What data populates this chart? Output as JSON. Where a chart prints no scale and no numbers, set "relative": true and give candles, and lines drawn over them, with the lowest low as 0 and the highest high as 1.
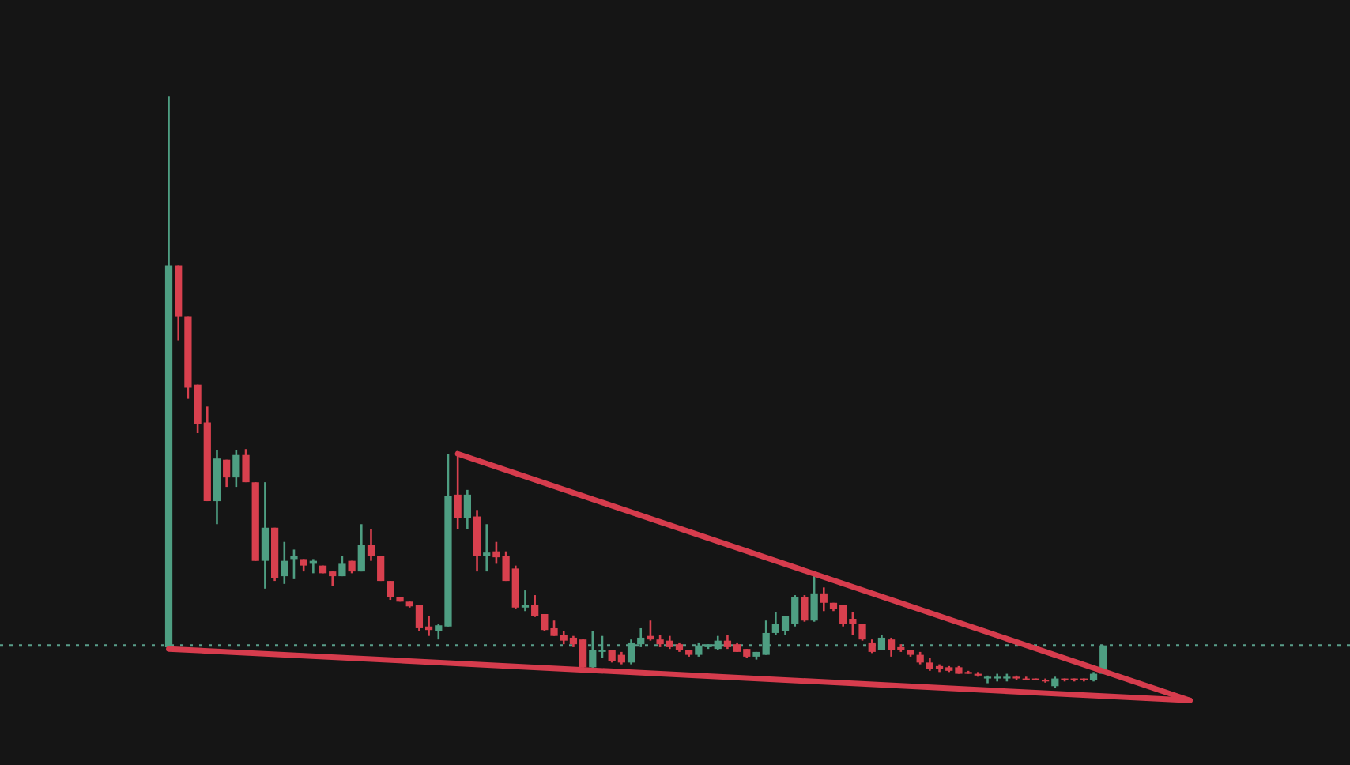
{
  "chart_data": {
    "type": "candlestick",
    "relative": true,
    "categories": [
      null,
      null,
      null,
      null,
      null,
      null,
      null,
      null,
      null,
      null,
      null,
      null,
      null,
      null,
      null,
      null,
      null,
      null,
      null,
      null,
      null,
      null,
      null,
      null,
      null,
      null,
      null,
      null,
      null,
      null,
      null,
      null,
      null,
      null,
      null,
      null,
      null,
      null,
      null,
      null,
      null,
      null,
      null,
      null,
      null,
      null,
      null,
      null,
      null,
      null,
      null,
      null,
      null,
      null,
      null,
      null,
      null,
      null,
      null,
      null,
      null,
      null,
      null,
      null,
      null,
      null,
      null,
      null,
      null,
      null,
      null,
      null,
      null,
      null,
      null,
      null,
      null,
      null,
      null,
      null,
      null,
      null,
      null,
      null,
      null,
      null,
      null,
      null,
      null,
      null,
      null,
      null,
      null,
      null,
      null,
      null,
      null,
      null,
      null,
      null,
      null,
      null,
      null,
      null,
      null,
      null,
      null
    ],
    "ohlc": [
      [
        0.069,
        1,
        0.069,
        0.715
      ],
      [
        0.715,
        0.715,
        0.588,
        0.628
      ],
      [
        0.628,
        0.628,
        0.489,
        0.508
      ],
      [
        0.513,
        0.513,
        0.431,
        0.447
      ],
      [
        0.449,
        0.476,
        0.316,
        0.316
      ],
      [
        0.316,
        0.402,
        0.277,
        0.388
      ],
      [
        0.386,
        0.386,
        0.34,
        0.356
      ],
      [
        0.356,
        0.402,
        0.34,
        0.394
      ],
      [
        0.394,
        0.404,
        0.348,
        0.348
      ],
      [
        0.348,
        0.348,
        0.215,
        0.215
      ],
      [
        0.215,
        0.348,
        0.168,
        0.271
      ],
      [
        0.271,
        0.271,
        0.181,
        0.186
      ],
      [
        0.189,
        0.247,
        0.176,
        0.215
      ],
      [
        0.218,
        0.234,
        0.184,
        0.223
      ],
      [
        0.218,
        0.218,
        0.197,
        0.207
      ],
      [
        0.21,
        0.218,
        0.194,
        0.215
      ],
      [
        0.207,
        0.207,
        0.194,
        0.194
      ],
      [
        0.197,
        0.197,
        0.173,
        0.189
      ],
      [
        0.189,
        0.223,
        0.189,
        0.21
      ],
      [
        0.215,
        0.215,
        0.194,
        0.197
      ],
      [
        0.197,
        0.277,
        0.197,
        0.242
      ],
      [
        0.242,
        0.269,
        0.215,
        0.223
      ],
      [
        0.223,
        0.223,
        0.181,
        0.181
      ],
      [
        0.181,
        0.181,
        0.149,
        0.154
      ],
      [
        0.154,
        0.154,
        0.146,
        0.146
      ],
      [
        0.146,
        0.146,
        0.136,
        0.138
      ],
      [
        0.141,
        0.141,
        0.096,
        0.101
      ],
      [
        0.104,
        0.122,
        0.088,
        0.098
      ],
      [
        0.096,
        0.109,
        0.082,
        0.106
      ],
      [
        0.104,
        0.396,
        0.104,
        0.324
      ],
      [
        0.327,
        0.396,
        0.269,
        0.287
      ],
      [
        0.287,
        0.335,
        0.269,
        0.327
      ],
      [
        0.29,
        0.301,
        0.197,
        0.223
      ],
      [
        0.223,
        0.277,
        0.197,
        0.229
      ],
      [
        0.231,
        0.247,
        0.21,
        0.221
      ],
      [
        0.223,
        0.231,
        0.181,
        0.181
      ],
      [
        0.202,
        0.207,
        0.133,
        0.136
      ],
      [
        0.136,
        0.165,
        0.13,
        0.141
      ],
      [
        0.141,
        0.157,
        0.12,
        0.122
      ],
      [
        0.125,
        0.125,
        0.096,
        0.098
      ],
      [
        0.101,
        0.114,
        0.088,
        0.088
      ],
      [
        0.09,
        0.096,
        0.074,
        0.08
      ],
      [
        0.085,
        0.088,
        0.069,
        0.074
      ],
      [
        0.082,
        0.082,
        0.029,
        0.035
      ],
      [
        0.035,
        0.096,
        0.029,
        0.064
      ],
      [
        0.061,
        0.088,
        0.051,
        0.064
      ],
      [
        0.064,
        0.064,
        0.043,
        0.045
      ],
      [
        0.056,
        0.061,
        0.04,
        0.043
      ],
      [
        0.043,
        0.082,
        0.04,
        0.077
      ],
      [
        0.074,
        0.101,
        0.069,
        0.085
      ],
      [
        0.088,
        0.114,
        0.08,
        0.082
      ],
      [
        0.082,
        0.09,
        0.069,
        0.074
      ],
      [
        0.08,
        0.088,
        0.066,
        0.069
      ],
      [
        0.074,
        0.077,
        0.061,
        0.064
      ],
      [
        0.064,
        0.064,
        0.053,
        0.056
      ],
      [
        0.056,
        0.077,
        0.053,
        0.072
      ],
      [
        0.069,
        0.074,
        0.066,
        0.074
      ],
      [
        0.066,
        0.088,
        0.064,
        0.08
      ],
      [
        0.08,
        0.09,
        0.066,
        0.069
      ],
      [
        0.074,
        0.077,
        0.061,
        0.061
      ],
      [
        0.066,
        0.066,
        0.051,
        0.053
      ],
      [
        0.053,
        0.061,
        0.048,
        0.061
      ],
      [
        0.056,
        0.114,
        0.056,
        0.093
      ],
      [
        0.093,
        0.128,
        0.09,
        0.109
      ],
      [
        0.096,
        0.122,
        0.09,
        0.122
      ],
      [
        0.109,
        0.157,
        0.104,
        0.154
      ],
      [
        0.154,
        0.157,
        0.112,
        0.114
      ],
      [
        0.114,
        0.194,
        0.112,
        0.16
      ],
      [
        0.16,
        0.17,
        0.13,
        0.144
      ],
      [
        0.144,
        0.144,
        0.13,
        0.133
      ],
      [
        0.141,
        0.141,
        0.104,
        0.109
      ],
      [
        0.117,
        0.128,
        0.09,
        0.109
      ],
      [
        0.109,
        0.109,
        0.08,
        0.082
      ],
      [
        0.077,
        0.082,
        0.059,
        0.061
      ],
      [
        0.064,
        0.09,
        0.064,
        0.085
      ],
      [
        0.082,
        0.085,
        0.053,
        0.064
      ],
      [
        0.069,
        0.074,
        0.061,
        0.064
      ],
      [
        0.064,
        0.064,
        0.053,
        0.056
      ],
      [
        0.056,
        0.061,
        0.04,
        0.043
      ],
      [
        0.043,
        0.051,
        0.029,
        0.032
      ],
      [
        0.037,
        0.04,
        0.027,
        0.032
      ],
      [
        0.035,
        0.037,
        0.027,
        0.029
      ],
      [
        0.035,
        0.037,
        0.024,
        0.024
      ],
      [
        0.027,
        0.029,
        0.024,
        0.024
      ],
      [
        0.024,
        0.027,
        0.019,
        0.021
      ],
      [
        0.016,
        0.021,
        0.008,
        0.019
      ],
      [
        0.016,
        0.024,
        0.011,
        0.019
      ],
      [
        0.016,
        0.024,
        0.011,
        0.019
      ],
      [
        0.019,
        0.021,
        0.014,
        0.016
      ],
      [
        0.016,
        0.019,
        0.013,
        0.013
      ],
      [
        0.016,
        0.016,
        0.013,
        0.013
      ],
      [
        0.013,
        0.016,
        0.009,
        0.011
      ],
      [
        0.003,
        0.019,
        0,
        0.016
      ],
      [
        0.016,
        0.016,
        0.011,
        0.013
      ],
      [
        0.016,
        0.016,
        0.011,
        0.013
      ],
      [
        0.016,
        0.016,
        0.011,
        0.013
      ],
      [
        0.013,
        0.027,
        0.011,
        0.024
      ],
      [
        0.024,
        0.072,
        0.024,
        0.072
      ],
      null,
      null,
      null,
      null,
      null,
      null,
      null,
      null,
      null
    ],
    "colors": [
      "#4e9e82",
      "#d8404e",
      "#d8404e",
      "#d8404e",
      "#d8404e",
      "#4e9e82",
      "#d8404e",
      "#4e9e82",
      "#d8404e",
      "#d8404e",
      "#4e9e82",
      "#d8404e",
      "#4e9e82",
      "#4e9e82",
      "#d8404e",
      "#4e9e82",
      "#d8404e",
      "#d8404e",
      "#4e9e82",
      "#d8404e",
      "#4e9e82",
      "#d8404e",
      "#d8404e",
      "#d8404e",
      "#d8404e",
      "#d8404e",
      "#d8404e",
      "#d8404e",
      "#4e9e82",
      "#4e9e82",
      "#d8404e",
      "#4e9e82",
      "#d8404e",
      "#4e9e82",
      "#d8404e",
      "#d8404e",
      "#d8404e",
      "#4e9e82",
      "#d8404e",
      "#d8404e",
      "#d8404e",
      "#d8404e",
      "#d8404e",
      "#d8404e",
      "#4e9e82",
      "#4e9e82",
      "#d8404e",
      "#d8404e",
      "#4e9e82",
      "#4e9e82",
      "#d8404e",
      "#d8404e",
      "#d8404e",
      "#d8404e",
      "#d8404e",
      "#4e9e82",
      "#4e9e82",
      "#4e9e82",
      "#d8404e",
      "#d8404e",
      "#d8404e",
      "#4e9e82",
      "#4e9e82",
      "#4e9e82",
      "#4e9e82",
      "#4e9e82",
      "#d8404e",
      "#4e9e82",
      "#d8404e",
      "#d8404e",
      "#d8404e",
      "#d8404e",
      "#d8404e",
      "#d8404e",
      "#4e9e82",
      "#d8404e",
      "#d8404e",
      "#d8404e",
      "#d8404e",
      "#d8404e",
      "#d8404e",
      "#d8404e",
      "#d8404e",
      "#d8404e",
      "#d8404e",
      "#4e9e82",
      "#4e9e82",
      "#4e9e82",
      "#d8404e",
      "#d8404e",
      "#d8404e",
      "#d8404e",
      "#4e9e82",
      "#d8404e",
      "#d8404e",
      "#d8404e",
      "#4e9e82",
      "#4e9e82",
      null,
      null,
      null,
      null,
      null,
      null,
      null,
      null,
      null
    ],
    "series": [
      {
        "type": "line",
        "color": "#d63c4d",
        "values": [
          null,
          null,
          null,
          null,
          null,
          null,
          null,
          null,
          null,
          null,
          null,
          null,
          null,
          null,
          null,
          null,
          null,
          null,
          null,
          null,
          null,
          null,
          null,
          null,
          null,
          null,
          null,
          null,
          null,
          null,
          0.396,
          null,
          null,
          null,
          null,
          null,
          null,
          null,
          null,
          null,
          null,
          null,
          null,
          null,
          null,
          null,
          null,
          null,
          null,
          null,
          null,
          null,
          null,
          null,
          null,
          null,
          null,
          null,
          null,
          null,
          null,
          null,
          null,
          null,
          null,
          null,
          null,
          null,
          null,
          null,
          null,
          null,
          null,
          null,
          null,
          null,
          null,
          null,
          null,
          null,
          null,
          null,
          null,
          null,
          null,
          null,
          null,
          null,
          null,
          null,
          null,
          null,
          null,
          null,
          null,
          null,
          null,
          null,
          null,
          null,
          null,
          null,
          null,
          null,
          null,
          null,
          -0.021
        ]
      },
      {
        "type": "line",
        "color": "#d63c4d",
        "values": [
          0.066,
          null,
          null,
          null,
          null,
          null,
          null,
          null,
          null,
          null,
          null,
          null,
          null,
          null,
          null,
          null,
          null,
          null,
          null,
          null,
          null,
          null,
          null,
          null,
          null,
          null,
          null,
          null,
          null,
          null,
          null,
          null,
          null,
          null,
          null,
          null,
          null,
          null,
          null,
          null,
          null,
          null,
          null,
          null,
          null,
          null,
          null,
          null,
          null,
          null,
          null,
          null,
          null,
          null,
          null,
          null,
          null,
          null,
          null,
          null,
          null,
          null,
          null,
          null,
          null,
          null,
          null,
          null,
          null,
          null,
          null,
          null,
          null,
          null,
          null,
          null,
          null,
          null,
          null,
          null,
          null,
          null,
          null,
          null,
          null,
          null,
          null,
          null,
          null,
          null,
          null,
          null,
          null,
          null,
          null,
          null,
          null,
          null,
          null,
          null,
          null,
          null,
          null,
          null,
          null,
          null,
          -0.021
        ]
      }
    ],
    "ref_lines": [
      {
        "axis": "y",
        "value": 0.072,
        "color": "#5a9e8a",
        "line_style": "dotted"
      }
    ]
  }
}
